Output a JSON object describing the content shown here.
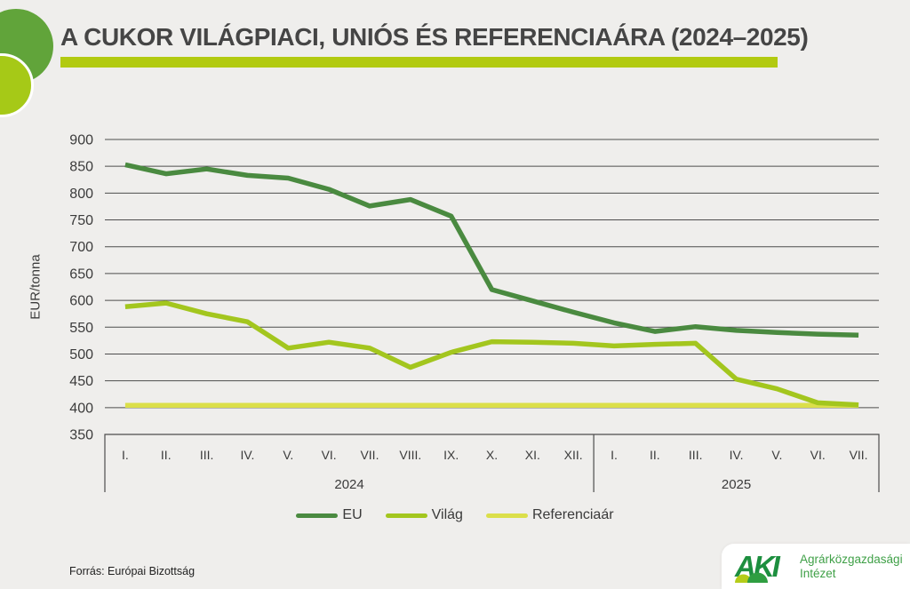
{
  "page": {
    "background": "#efeeec",
    "title": "A CUKOR VILÁGPIACI, UNIÓS ÉS REFERENCIAÁRA (2024–2025)",
    "accent_bar_color": "#b2ca11",
    "source_note": "Forrás: Európai Bizottság"
  },
  "decor": {
    "circle_large_color": "#61a43a",
    "circle_small_color": "#a6c917"
  },
  "chart_data": {
    "type": "line",
    "title": "A CUKOR VILÁGPIACI, UNIÓS ÉS REFERENCIAÁRA (2024–2025)",
    "xlabel": "",
    "ylabel": "EUR/tonna",
    "ylim": [
      350,
      900
    ],
    "ytick_step": 50,
    "grid": true,
    "gridline_color": "#4d4d4d",
    "legend_position": "bottom",
    "x_labels": [
      "I.",
      "II.",
      "III.",
      "IV.",
      "V.",
      "VI.",
      "VII.",
      "VIII.",
      "IX.",
      "X.",
      "XI.",
      "XII.",
      "I.",
      "II.",
      "III.",
      "IV.",
      "V.",
      "VI.",
      "VII."
    ],
    "year_groups": [
      {
        "label": "2024",
        "months": 12
      },
      {
        "label": "2025",
        "months": 7
      }
    ],
    "series": [
      {
        "name": "EU",
        "color": "#4a8a40",
        "values": [
          853,
          836,
          845,
          833,
          828,
          807,
          776,
          788,
          757,
          620,
          599,
          578,
          558,
          542,
          551,
          544,
          540,
          537,
          535
        ]
      },
      {
        "name": "Világ",
        "color": "#a3c61e",
        "values": [
          588,
          595,
          575,
          560,
          511,
          522,
          511,
          475,
          503,
          523,
          522,
          520,
          515,
          518,
          520,
          453,
          435,
          409,
          405
        ]
      },
      {
        "name": "Referenciaár",
        "color": "#dbdf4a",
        "values": [
          404.4,
          404.4,
          404.4,
          404.4,
          404.4,
          404.4,
          404.4,
          404.4,
          404.4,
          404.4,
          404.4,
          404.4,
          404.4,
          404.4,
          404.4,
          404.4,
          404.4,
          404.4,
          404.4
        ]
      }
    ]
  },
  "logo": {
    "short_name": "AKI",
    "org_line1": "Agrárközgazdasági",
    "org_line2": "Intézet",
    "letter_green": "#1d8f3f",
    "text_green": "#3fa047",
    "mound_lime": "#b5cc1a",
    "mound_green": "#2f9e41"
  }
}
